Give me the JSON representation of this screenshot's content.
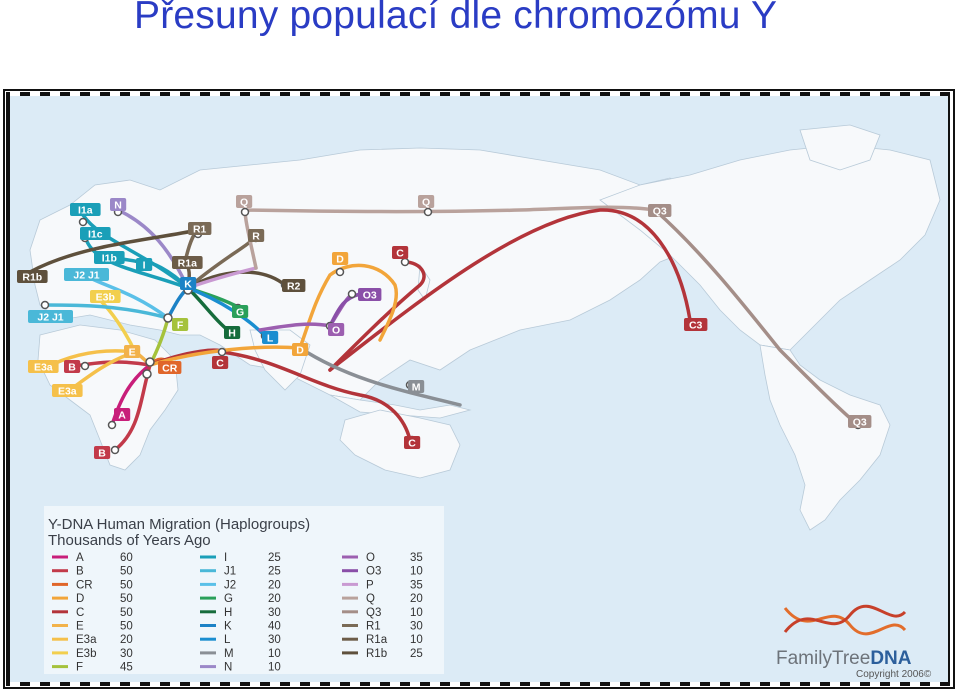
{
  "title": "Přesuny populací dle chromozómu Y",
  "legend": {
    "heading": "Y-DNA Human Migration (Haplogroups)",
    "subheading": "Thousands of Years Ago",
    "entries": [
      {
        "code": "A",
        "years": "60",
        "color": "#c81e7a"
      },
      {
        "code": "B",
        "years": "50",
        "color": "#c23a4a"
      },
      {
        "code": "CR",
        "years": "50",
        "color": "#e0662a"
      },
      {
        "code": "D",
        "years": "50",
        "color": "#f2a53a"
      },
      {
        "code": "C",
        "years": "50",
        "color": "#b3343a"
      },
      {
        "code": "E",
        "years": "50",
        "color": "#f2b24a"
      },
      {
        "code": "E3a",
        "years": "20",
        "color": "#f5c04a"
      },
      {
        "code": "E3b",
        "years": "30",
        "color": "#f2cf4e"
      },
      {
        "code": "F",
        "years": "45",
        "color": "#a5c23c"
      },
      {
        "code": "I",
        "years": "25",
        "color": "#1a9fb8"
      },
      {
        "code": "J1",
        "years": "25",
        "color": "#4ab8d8"
      },
      {
        "code": "J2",
        "years": "20",
        "color": "#5ac0e8"
      },
      {
        "code": "G",
        "years": "20",
        "color": "#2aa05a"
      },
      {
        "code": "H",
        "years": "30",
        "color": "#166c3c"
      },
      {
        "code": "K",
        "years": "40",
        "color": "#1c82c6"
      },
      {
        "code": "L",
        "years": "30",
        "color": "#1a8ed0"
      },
      {
        "code": "M",
        "years": "10",
        "color": "#8a8f95"
      },
      {
        "code": "N",
        "years": "10",
        "color": "#9b88c8"
      },
      {
        "code": "O",
        "years": "35",
        "color": "#9c5fb0"
      },
      {
        "code": "O3",
        "years": "10",
        "color": "#8a4fa8"
      },
      {
        "code": "P",
        "years": "35",
        "color": "#c99ad2"
      },
      {
        "code": "Q",
        "years": "20",
        "color": "#b9a29c"
      },
      {
        "code": "Q3",
        "years": "10",
        "color": "#a48e88"
      },
      {
        "code": "R1",
        "years": "30",
        "color": "#7a6a56"
      },
      {
        "code": "R1a",
        "years": "10",
        "color": "#6c5c48"
      },
      {
        "code": "R1b",
        "years": "25",
        "color": "#5e503c"
      }
    ]
  },
  "map_labels": [
    {
      "text": "I1a",
      "color": "#1a9fb8"
    },
    {
      "text": "I1c",
      "color": "#1a9fb8"
    },
    {
      "text": "N",
      "color": "#9b88c8"
    },
    {
      "text": "I1b",
      "color": "#1a9fb8"
    },
    {
      "text": "R1b",
      "color": "#5e503c"
    },
    {
      "text": "J2 J1",
      "color": "#4ab8d8"
    },
    {
      "text": "I",
      "color": "#1a9fb8"
    },
    {
      "text": "R1a",
      "color": "#6c5c48"
    },
    {
      "text": "R1",
      "color": "#7a6a56"
    },
    {
      "text": "E3b",
      "color": "#f2cf4e"
    },
    {
      "text": "J2 J1",
      "color": "#4ab8d8"
    },
    {
      "text": "K",
      "color": "#1c82c6"
    },
    {
      "text": "F",
      "color": "#a5c23c"
    },
    {
      "text": "G",
      "color": "#2aa05a"
    },
    {
      "text": "H",
      "color": "#166c3c"
    },
    {
      "text": "L",
      "color": "#1a8ed0"
    },
    {
      "text": "E",
      "color": "#f2b24a"
    },
    {
      "text": "E3a",
      "color": "#f5c04a"
    },
    {
      "text": "B",
      "color": "#c23a4a"
    },
    {
      "text": "CR",
      "color": "#e0662a"
    },
    {
      "text": "E3a",
      "color": "#f5c04a"
    },
    {
      "text": "A",
      "color": "#c81e7a"
    },
    {
      "text": "B",
      "color": "#c23a4a"
    },
    {
      "text": "Q",
      "color": "#b9a29c"
    },
    {
      "text": "R",
      "color": "#7a6a56"
    },
    {
      "text": "Q",
      "color": "#b9a29c"
    },
    {
      "text": "R2",
      "color": "#5e503c"
    },
    {
      "text": "D",
      "color": "#f2a53a"
    },
    {
      "text": "C",
      "color": "#b3343a"
    },
    {
      "text": "O3",
      "color": "#8a4fa8"
    },
    {
      "text": "O",
      "color": "#9c5fb0"
    },
    {
      "text": "C",
      "color": "#b3343a"
    },
    {
      "text": "D",
      "color": "#f2a53a"
    },
    {
      "text": "M",
      "color": "#8a8f95"
    },
    {
      "text": "C",
      "color": "#b3343a"
    },
    {
      "text": "Q3",
      "color": "#a48e88"
    },
    {
      "text": "C3",
      "color": "#b3343a"
    },
    {
      "text": "Q3",
      "color": "#a48e88"
    }
  ],
  "branding": {
    "name_regular": "FamilyTree",
    "name_bold": "DNA",
    "copyright": "Copyright 2006©"
  }
}
